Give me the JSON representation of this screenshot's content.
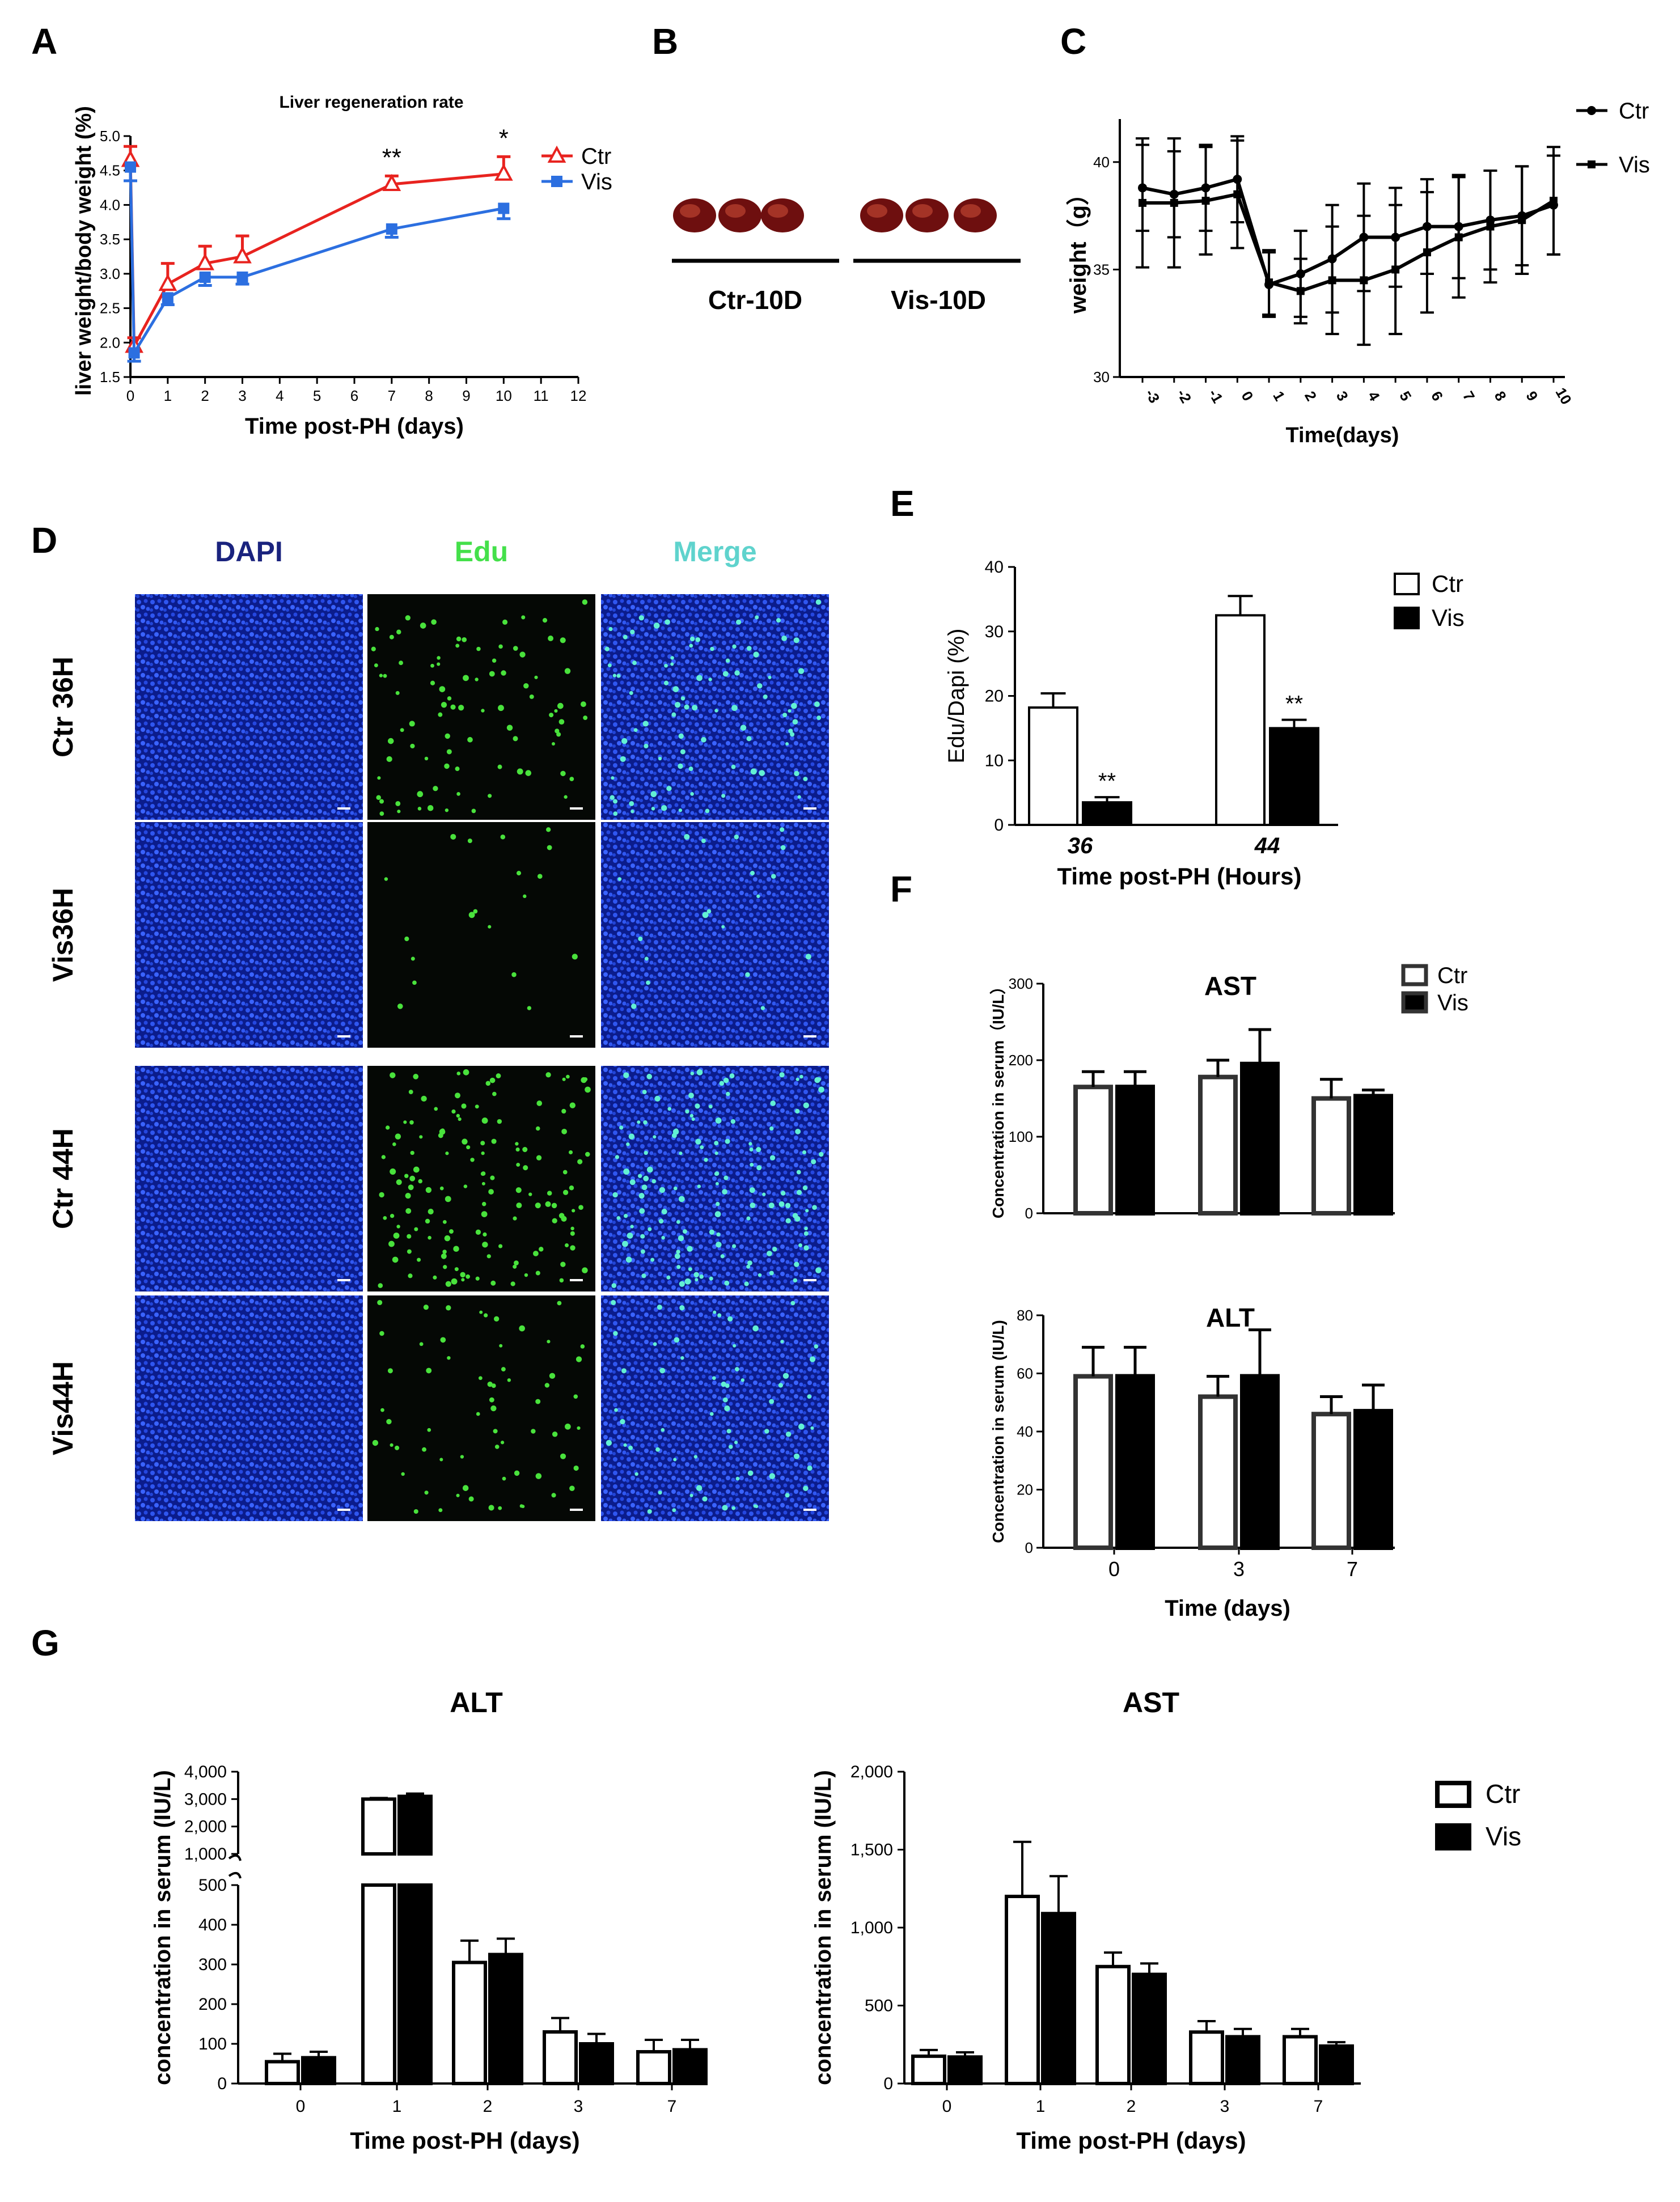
{
  "panels": {
    "A": {
      "label": "A",
      "chart_data": {
        "type": "line",
        "title": "Liver regeneration rate",
        "xlabel": "Time post-PH (days)",
        "ylabel": "liver weight/body weight  (%)",
        "xlim": [
          0,
          12
        ],
        "ylim": [
          1.5,
          5.0
        ],
        "xticks": [
          "0",
          "1",
          "2",
          "3",
          "4",
          "5",
          "6",
          "7",
          "8",
          "9",
          "10",
          "11",
          "12"
        ],
        "yticks": [
          "1.5",
          "2.0",
          "2.5",
          "3.0",
          "3.5",
          "4.0",
          "4.5",
          "5.0"
        ],
        "series": [
          {
            "name": "Ctr",
            "color": "#e8231f",
            "marker": "triangle-open",
            "x": [
              0,
              0.1,
              1,
              2,
              3,
              7,
              10
            ],
            "y": [
              4.65,
              1.95,
              2.85,
              3.15,
              3.25,
              4.3,
              4.45
            ],
            "err": [
              0.2,
              0.12,
              0.3,
              0.25,
              0.3,
              0.12,
              0.25
            ]
          },
          {
            "name": "Vis",
            "color": "#2c6fe0",
            "marker": "square",
            "x": [
              0,
              0.1,
              1,
              2,
              3,
              7,
              10
            ],
            "y": [
              4.55,
              1.85,
              2.65,
              2.95,
              2.95,
              3.65,
              3.95
            ],
            "err": [
              0.2,
              0.12,
              0.1,
              0.12,
              0.1,
              0.12,
              0.15
            ]
          }
        ],
        "annotations": [
          {
            "x": 7,
            "text": "**"
          },
          {
            "x": 10,
            "text": "*"
          }
        ]
      }
    },
    "B": {
      "label": "B",
      "groups": [
        "Ctr-10D",
        "Vis-10D"
      ]
    },
    "C": {
      "label": "C",
      "chart_data": {
        "type": "line",
        "xlabel": "Time(days)",
        "ylabel": "weight（g）",
        "ylim": [
          30,
          42
        ],
        "yticks": [
          "30",
          "35",
          "40"
        ],
        "categories": [
          "-3",
          "-2",
          "-1",
          "0",
          "1",
          "2",
          "3",
          "4",
          "5",
          "6",
          "7",
          "8",
          "9",
          "10"
        ],
        "series": [
          {
            "name": "Ctr",
            "marker": "circle",
            "values": [
              38.8,
              38.5,
              38.8,
              39.2,
              34.3,
              34.8,
              35.5,
              36.5,
              36.5,
              37.0,
              37.0,
              37.3,
              37.5,
              38.0
            ],
            "err": [
              2.0,
              2.0,
              2.0,
              2.0,
              1.5,
              2.0,
              2.5,
              2.5,
              2.3,
              2.2,
              2.4,
              2.3,
              2.3,
              2.3
            ]
          },
          {
            "name": "Vis",
            "marker": "square",
            "values": [
              38.1,
              38.1,
              38.2,
              38.5,
              34.4,
              34.0,
              34.5,
              34.5,
              35.0,
              35.8,
              36.5,
              37.0,
              37.3,
              38.2
            ],
            "err": [
              3.0,
              3.0,
              2.5,
              2.5,
              1.5,
              1.5,
              2.5,
              3.0,
              3.0,
              2.8,
              2.8,
              2.6,
              2.5,
              2.5
            ]
          }
        ]
      }
    },
    "D": {
      "label": "D",
      "columns": [
        {
          "text": "DAPI",
          "color": "#1a237e"
        },
        {
          "text": "Edu",
          "color": "#44e04a"
        },
        {
          "text": "Merge",
          "color": "#5fd3cd"
        }
      ],
      "rows": [
        "Ctr 36H",
        "Vis36H",
        "Ctr 44H",
        "Vis44H"
      ],
      "edu_density": [
        0.55,
        0.12,
        0.9,
        0.4
      ]
    },
    "E": {
      "label": "E",
      "chart_data": {
        "type": "bar",
        "xlabel": "Time post-PH (Hours)",
        "ylabel": "Edu/Dapi   (%)",
        "ylim": [
          0,
          40
        ],
        "yticks": [
          "0",
          "10",
          "20",
          "30",
          "40"
        ],
        "categories": [
          "36",
          "44"
        ],
        "series": [
          {
            "name": "Ctr",
            "values": [
              18.2,
              32.5
            ],
            "err": [
              2.2,
              3.0
            ]
          },
          {
            "name": "Vis",
            "values": [
              3.5,
              15.0
            ],
            "err": [
              0.8,
              1.3
            ]
          }
        ],
        "annotations": [
          "**",
          "**"
        ]
      }
    },
    "F": {
      "label": "F",
      "legend": [
        "Ctr",
        "Vis"
      ],
      "xlabel": "Time (days)",
      "charts": [
        {
          "type": "bar",
          "title": "AST",
          "ylabel": "Concentration in serum（IU/L）",
          "ylim": [
            0,
            300
          ],
          "yticks": [
            "0",
            "100",
            "200",
            "300"
          ],
          "categories": [
            "0",
            "3",
            "7"
          ],
          "series": [
            {
              "name": "Ctr",
              "values": [
                165,
                178,
                150
              ],
              "err": [
                20,
                22,
                25
              ]
            },
            {
              "name": "Vis",
              "values": [
                165,
                195,
                153
              ],
              "err": [
                20,
                45,
                8
              ]
            }
          ]
        },
        {
          "type": "bar",
          "title": "ALT",
          "ylabel": "Concentration in serum (IU/L)",
          "ylim": [
            0,
            80
          ],
          "yticks": [
            "0",
            "20",
            "40",
            "60",
            "80"
          ],
          "categories": [
            "0",
            "3",
            "7"
          ],
          "series": [
            {
              "name": "Ctr",
              "values": [
                59,
                52,
                46
              ],
              "err": [
                10,
                7,
                6
              ]
            },
            {
              "name": "Vis",
              "values": [
                59,
                59,
                47
              ],
              "err": [
                10,
                16,
                9
              ]
            }
          ]
        }
      ]
    },
    "G": {
      "label": "G",
      "legend": [
        "Ctr",
        "Vis"
      ],
      "charts": [
        {
          "type": "bar",
          "title": "ALT",
          "ylabel": "concentration in serum (IU/L)",
          "xlabel": "Time post-PH (days)",
          "categories": [
            "0",
            "1",
            "2",
            "3",
            "7"
          ],
          "yticks_low": [
            "0",
            "100",
            "200",
            "300",
            "400",
            "500"
          ],
          "yticks_high": [
            "1,000",
            "2,000",
            "3,000",
            "4,000"
          ],
          "series": [
            {
              "name": "Ctr",
              "values": [
                55,
                3000,
                305,
                130,
                80
              ],
              "err": [
                20,
                40,
                55,
                35,
                30
              ]
            },
            {
              "name": "Vis",
              "values": [
                65,
                3100,
                325,
                100,
                85
              ],
              "err": [
                15,
                100,
                40,
                25,
                25
              ]
            }
          ]
        },
        {
          "type": "bar",
          "title": "AST",
          "ylabel": "concentration in serum (IU/L)",
          "xlabel": "Time post-PH (days)",
          "ylim": [
            0,
            2000
          ],
          "yticks": [
            "0",
            "500",
            "1,000",
            "1,500",
            "2,000"
          ],
          "categories": [
            "0",
            "1",
            "2",
            "3",
            "7"
          ],
          "series": [
            {
              "name": "Ctr",
              "values": [
                175,
                1200,
                750,
                330,
                300
              ],
              "err": [
                40,
                350,
                90,
                70,
                50
              ]
            },
            {
              "name": "Vis",
              "values": [
                170,
                1090,
                700,
                300,
                240
              ],
              "err": [
                30,
                240,
                70,
                50,
                25
              ]
            }
          ]
        }
      ]
    }
  }
}
